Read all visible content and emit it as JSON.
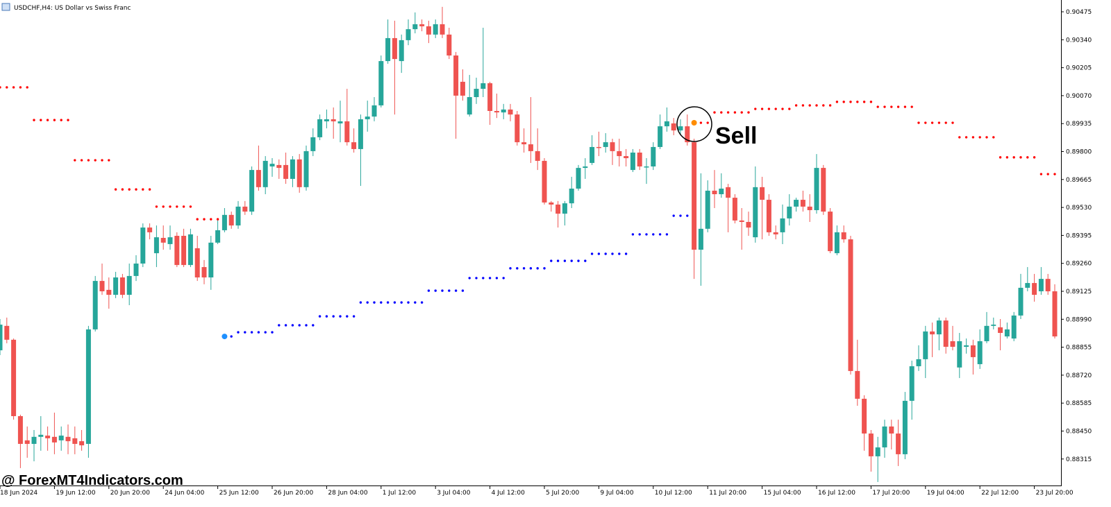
{
  "chart_data": {
    "type": "candlestick",
    "title": "USDCHF,H4:  US Dollar vs Swiss Franc",
    "watermark": "@ ForexMT4Indicators.com",
    "annotation": "Sell",
    "up_color": "#26a69a",
    "down_color": "#ef5350",
    "ylim": [
      0.88187,
      0.90532
    ],
    "yticks": [
      0.90475,
      {
        "value": 0.9034,
        "label": "0.90340"
      },
      0.90205,
      {
        "value": 0.9007,
        "label": "0.90070"
      },
      0.89935,
      {
        "value": 0.898,
        "label": "0.89800"
      },
      0.89665,
      {
        "value": 0.8953,
        "label": "0.89530"
      },
      0.89395,
      {
        "value": 0.8926,
        "label": "0.89260"
      },
      0.89125,
      {
        "value": 0.8899,
        "label": "0.88990"
      },
      0.88855,
      {
        "value": 0.8872,
        "label": "0.88720"
      },
      0.88585,
      {
        "value": 0.8845,
        "label": "0.88450"
      },
      0.88315
    ],
    "xticks": [
      {
        "value": 0,
        "label": "18 Jun 2024"
      },
      {
        "value": 8,
        "label": "19 Jun 12:00"
      },
      {
        "value": 16,
        "label": "20 Jun 20:00"
      },
      {
        "value": 24,
        "label": "24 Jun 04:00"
      },
      {
        "value": 32,
        "label": "25 Jun 12:00"
      },
      {
        "value": 40,
        "label": "26 Jun 20:00"
      },
      {
        "value": 48,
        "label": "28 Jun 04:00"
      },
      {
        "value": 56,
        "label": "1 Jul 12:00"
      },
      {
        "value": 64,
        "label": "3 Jul 04:00"
      },
      {
        "value": 72,
        "label": "4 Jul 12:00"
      },
      {
        "value": 80,
        "label": "5 Jul 20:00"
      },
      {
        "value": 88,
        "label": "9 Jul 04:00"
      },
      {
        "value": 96,
        "label": "10 Jul 12:00"
      },
      {
        "value": 104,
        "label": "11 Jul 20:00"
      },
      {
        "value": 112,
        "label": "15 Jul 04:00"
      },
      {
        "value": 120,
        "label": "16 Jul 12:00"
      },
      {
        "value": 128,
        "label": "17 Jul 20:00"
      },
      {
        "value": 136,
        "label": "19 Jul 04:00"
      },
      {
        "value": 144,
        "label": "22 Jul 12:00"
      },
      {
        "value": 152,
        "label": "23 Jul 20:00"
      }
    ],
    "open": [
      0.8884,
      0.88958,
      0.88891,
      0.88522,
      0.88405,
      0.88388,
      0.88422,
      0.88428,
      0.88422,
      0.88405,
      0.88422,
      0.88415,
      0.88401,
      0.88388,
      0.88941,
      0.89175,
      0.89132,
      0.89108,
      0.89192,
      0.89108,
      0.89199,
      0.89259,
      0.89433,
      0.89309,
      0.89383,
      0.89353,
      0.89393,
      0.89393,
      0.89252,
      0.89333,
      0.89242,
      0.89192,
      0.8936,
      0.8942,
      0.89494,
      0.89443,
      0.89534,
      0.8951,
      0.89711,
      0.89628,
      0.89728,
      0.89735,
      0.89735,
      0.89668,
      0.89762,
      0.89628,
      0.89802,
      0.89869,
      0.89946,
      0.89956,
      0.89936,
      0.89946,
      0.89845,
      0.89812,
      0.89956,
      0.89969,
      0.90023,
      0.90237,
      0.90348,
      0.90237,
      0.90338,
      0.90391,
      0.90415,
      0.90405,
      0.90365,
      0.90415,
      0.90365,
      0.90264,
      0.90137,
      0.89979,
      0.90063,
      0.90103,
      0.9013,
      0.89996,
      0.89989,
      0.90003,
      0.89979,
      0.89845,
      0.89835,
      0.89802,
      0.89755,
      0.89554,
      0.89544,
      0.895,
      0.8955,
      0.89621,
      0.89721,
      0.89745,
      0.89822,
      0.89822,
      0.89845,
      0.89802,
      0.89778,
      0.89711,
      0.89795,
      0.89728,
      0.89728,
      0.89822,
      0.89922,
      0.89936,
      0.89902,
      0.89922,
      0.89845,
      0.89326,
      0.89427,
      0.89611,
      0.89594,
      0.89628,
      0.89577,
      0.89467,
      0.8946,
      0.89386,
      0.89628,
      0.89567,
      0.8941,
      0.8941,
      0.89477,
      0.89534,
      0.89567,
      0.89534,
      0.89517,
      0.89721,
      0.8951,
      0.89309,
      0.8941,
      0.89376,
      0.8874,
      0.88606,
      0.88438,
      0.88328,
      0.88371,
      0.88472,
      0.88438,
      0.88338,
      0.88596,
      0.88763,
      0.88797,
      0.88931,
      0.88917,
      0.88984,
      0.88884,
      0.88757,
      0.88857,
      0.88864,
      0.88773,
      0.88884,
      0.88958,
      0.88951,
      0.88907,
      0.88897,
      0.89008,
      0.89142,
      0.89165,
      0.89125,
      0.89185,
      0.89125
    ],
    "high": [
      0.88991,
      0.88998,
      0.88897,
      0.88529,
      0.88472,
      0.88455,
      0.88522,
      0.88472,
      0.88539,
      0.88472,
      0.88482,
      0.88472,
      0.88455,
      0.88958,
      0.89199,
      0.89259,
      0.89192,
      0.89219,
      0.89209,
      0.89259,
      0.89299,
      0.89453,
      0.89453,
      0.89443,
      0.89443,
      0.89443,
      0.8941,
      0.89427,
      0.89427,
      0.89393,
      0.89276,
      0.89393,
      0.89477,
      0.89527,
      0.8951,
      0.89561,
      0.89561,
      0.89728,
      0.89829,
      0.89778,
      0.89768,
      0.89762,
      0.89795,
      0.89778,
      0.89788,
      0.89829,
      0.89912,
      0.89979,
      0.90003,
      0.90013,
      0.90046,
      0.90103,
      0.89912,
      0.89979,
      0.90046,
      0.90063,
      0.90264,
      0.90438,
      0.90432,
      0.90365,
      0.90438,
      0.90472,
      0.90438,
      0.90432,
      0.90438,
      0.90499,
      0.90398,
      0.90281,
      0.90197,
      0.9017,
      0.90157,
      0.90398,
      0.90137,
      0.9008,
      0.9003,
      0.9003,
      0.89996,
      0.89912,
      0.90063,
      0.89912,
      0.89768,
      0.89561,
      0.89561,
      0.89561,
      0.89678,
      0.89735,
      0.89768,
      0.89879,
      0.89896,
      0.89889,
      0.89862,
      0.89862,
      0.89812,
      0.89812,
      0.89812,
      0.89768,
      0.89845,
      0.89979,
      0.90013,
      0.89962,
      0.89956,
      0.89979,
      0.89862,
      0.89695,
      0.89661,
      0.89711,
      0.89695,
      0.89644,
      0.89594,
      0.89527,
      0.8951,
      0.89728,
      0.89678,
      0.89594,
      0.89443,
      0.89544,
      0.89594,
      0.89577,
      0.89611,
      0.89594,
      0.89788,
      0.89735,
      0.89527,
      0.89443,
      0.89443,
      0.89393,
      0.88891,
      0.88623,
      0.88455,
      0.88422,
      0.88505,
      0.88505,
      0.88505,
      0.88639,
      0.8879,
      0.88864,
      0.88958,
      0.88974,
      0.88998,
      0.88998,
      0.88958,
      0.88924,
      0.88897,
      0.88891,
      0.88941,
      0.89025,
      0.88998,
      0.88991,
      0.88974,
      0.89025,
      0.89209,
      0.89242,
      0.89209,
      0.89242,
      0.89209,
      0.89159
    ],
    "low": [
      0.88817,
      0.88874,
      0.88505,
      0.88271,
      0.88321,
      0.88304,
      0.88355,
      0.88355,
      0.88338,
      0.88355,
      0.88338,
      0.88338,
      0.88355,
      0.88321,
      0.88931,
      0.89108,
      0.89041,
      0.89092,
      0.89092,
      0.89058,
      0.89175,
      0.89242,
      0.89376,
      0.89242,
      0.89326,
      0.89326,
      0.89242,
      0.89242,
      0.89242,
      0.89175,
      0.89159,
      0.89132,
      0.89353,
      0.8941,
      0.89427,
      0.89427,
      0.89494,
      0.89494,
      0.89611,
      0.89594,
      0.89678,
      0.89668,
      0.89644,
      0.89628,
      0.89601,
      0.89611,
      0.89778,
      0.89855,
      0.89912,
      0.89862,
      0.89845,
      0.89829,
      0.89795,
      0.89634,
      0.89896,
      0.89946,
      0.90013,
      0.90224,
      0.89979,
      0.9018,
      0.90314,
      0.90371,
      0.90381,
      0.90324,
      0.90348,
      0.90348,
      0.90247,
      0.89862,
      0.90046,
      0.89969,
      0.9003,
      0.90063,
      0.89929,
      0.89962,
      0.89956,
      0.89946,
      0.89829,
      0.89795,
      0.89745,
      0.89711,
      0.89544,
      0.8951,
      0.89433,
      0.89443,
      0.89527,
      0.89611,
      0.89668,
      0.89735,
      0.89778,
      0.89795,
      0.89735,
      0.89728,
      0.89728,
      0.89701,
      0.89711,
      0.89644,
      0.89711,
      0.89812,
      0.89896,
      0.89879,
      0.89879,
      0.89829,
      0.89185,
      0.89152,
      0.8941,
      0.89527,
      0.89577,
      0.8941,
      0.89453,
      0.89326,
      0.89393,
      0.8936,
      0.89376,
      0.89393,
      0.89376,
      0.89353,
      0.89443,
      0.8951,
      0.8951,
      0.8946,
      0.895,
      0.89494,
      0.89309,
      0.89299,
      0.8936,
      0.88723,
      0.88572,
      0.88355,
      0.88254,
      0.88204,
      0.88321,
      0.88361,
      0.88281,
      0.88314,
      0.88505,
      0.8874,
      0.88706,
      0.88807,
      0.8884,
      0.88824,
      0.8884,
      0.88706,
      0.88824,
      0.88723,
      0.8875,
      0.88874,
      0.88941,
      0.8884,
      0.88897,
      0.88884,
      0.88991,
      0.89125,
      0.89075,
      0.89108,
      0.89108,
      0.88897
    ],
    "close": [
      0.88964,
      0.88891,
      0.88522,
      0.88388,
      0.88388,
      0.88422,
      0.88432,
      0.88415,
      0.88395,
      0.88428,
      0.88401,
      0.88388,
      0.88381,
      0.88941,
      0.89175,
      0.89125,
      0.89108,
      0.89192,
      0.89108,
      0.89199,
      0.89259,
      0.89433,
      0.8941,
      0.89386,
      0.8936,
      0.89386,
      0.89252,
      0.89252,
      0.894,
      0.89192,
      0.89192,
      0.8936,
      0.8942,
      0.89494,
      0.89443,
      0.89534,
      0.8951,
      0.89711,
      0.89628,
      0.89755,
      0.89741,
      0.89721,
      0.89668,
      0.89762,
      0.89628,
      0.89802,
      0.89869,
      0.89956,
      0.89956,
      0.89946,
      0.89946,
      0.89845,
      0.89812,
      0.89956,
      0.89969,
      0.90023,
      0.90237,
      0.90348,
      0.90247,
      0.90338,
      0.90391,
      0.90415,
      0.90405,
      0.90365,
      0.90415,
      0.90365,
      0.90264,
      0.9007,
      0.9007,
      0.90063,
      0.90103,
      0.9013,
      0.89996,
      0.89989,
      0.90003,
      0.89979,
      0.89845,
      0.89835,
      0.89802,
      0.89755,
      0.89554,
      0.89544,
      0.895,
      0.8955,
      0.89621,
      0.89721,
      0.89728,
      0.89822,
      0.89818,
      0.89845,
      0.89802,
      0.89778,
      0.89768,
      0.89795,
      0.89728,
      0.89728,
      0.89822,
      0.89922,
      0.89946,
      0.89902,
      0.89922,
      0.89845,
      0.89326,
      0.89427,
      0.89611,
      0.89594,
      0.89621,
      0.89577,
      0.89467,
      0.8946,
      0.89433,
      0.89628,
      0.89567,
      0.8941,
      0.894,
      0.89477,
      0.89534,
      0.89567,
      0.89534,
      0.89517,
      0.89721,
      0.8951,
      0.89319,
      0.8941,
      0.89376,
      0.8874,
      0.88606,
      0.88438,
      0.88328,
      0.88371,
      0.88472,
      0.88438,
      0.88338,
      0.88596,
      0.88763,
      0.88797,
      0.88931,
      0.88917,
      0.88984,
      0.88857,
      0.88857,
      0.88884,
      0.88864,
      0.88807,
      0.88884,
      0.88958,
      0.88964,
      0.88924,
      0.88941,
      0.89008,
      0.89142,
      0.89165,
      0.89108,
      0.89185,
      0.89125,
      0.88907
    ],
    "indicators": [
      {
        "color": "#ff0000",
        "values": [
          0.9011,
          0.9011,
          0.9011,
          0.9011,
          0.9011,
          0.89952,
          0.89952,
          0.89952,
          0.89952,
          0.89952,
          0.89952,
          0.89758,
          0.89758,
          0.89758,
          0.89758,
          0.89758,
          0.89758,
          0.89617,
          0.89617,
          0.89617,
          0.89617,
          0.89617,
          0.89617,
          0.89534,
          0.89534,
          0.89534,
          0.89534,
          0.89534,
          0.89534,
          0.89473,
          0.89473,
          0.89473,
          0.89473,
          null,
          null,
          null,
          null,
          null,
          null,
          null,
          null,
          null,
          null,
          null,
          null,
          null,
          null,
          null,
          null,
          null,
          null,
          null,
          null,
          null,
          null,
          null,
          null,
          null,
          null,
          null,
          null,
          null,
          null,
          null,
          null,
          null,
          null,
          null,
          null,
          null,
          null,
          null,
          null,
          null,
          null,
          null,
          null,
          null,
          null,
          null,
          null,
          null,
          null,
          null,
          null,
          null,
          null,
          null,
          null,
          null,
          null,
          null,
          null,
          null,
          null,
          null,
          null,
          null,
          null,
          null,
          null,
          null,
          null,
          0.89939,
          0.89939,
          0.89989,
          0.89989,
          0.89989,
          0.89989,
          0.89989,
          0.89989,
          0.90006,
          0.90006,
          0.90006,
          0.90006,
          0.90006,
          0.90006,
          0.90023,
          0.90023,
          0.90023,
          0.90023,
          0.90023,
          0.90023,
          0.9004,
          0.9004,
          0.9004,
          0.9004,
          0.9004,
          0.9004,
          0.90016,
          0.90016,
          0.90016,
          0.90016,
          0.90016,
          0.90016,
          0.89939,
          0.89939,
          0.89939,
          0.89939,
          0.89939,
          0.89939,
          0.89869,
          0.89869,
          0.89869,
          0.89869,
          0.89869,
          0.89869,
          0.89772,
          0.89772,
          0.89772,
          0.89772,
          0.89772,
          0.89772,
          0.89691,
          0.89691,
          0.89691
        ]
      },
      {
        "color": "#0000ff",
        "values": [
          null,
          null,
          null,
          null,
          null,
          null,
          null,
          null,
          null,
          null,
          null,
          null,
          null,
          null,
          null,
          null,
          null,
          null,
          null,
          null,
          null,
          null,
          null,
          null,
          null,
          null,
          null,
          null,
          null,
          null,
          null,
          null,
          null,
          0.88907,
          0.88907,
          0.88927,
          0.88927,
          0.88927,
          0.88927,
          0.88927,
          0.88927,
          0.88961,
          0.88961,
          0.88961,
          0.88961,
          0.88961,
          0.88961,
          0.89004,
          0.89004,
          0.89004,
          0.89004,
          0.89004,
          0.89004,
          0.89071,
          0.89071,
          0.89071,
          0.89071,
          0.89071,
          0.89071,
          0.89071,
          0.89071,
          0.89071,
          0.89071,
          0.89128,
          0.89128,
          0.89128,
          0.89128,
          0.89128,
          0.89128,
          0.89189,
          0.89189,
          0.89189,
          0.89189,
          0.89189,
          0.89189,
          0.89236,
          0.89236,
          0.89236,
          0.89236,
          0.89236,
          0.89236,
          0.89272,
          0.89272,
          0.89272,
          0.89272,
          0.89272,
          0.89272,
          0.89306,
          0.89306,
          0.89306,
          0.89306,
          0.89306,
          0.89306,
          0.894,
          0.894,
          0.894,
          0.894,
          0.894,
          0.894,
          0.8949,
          0.8949,
          0.8949,
          null,
          null,
          null,
          null,
          null,
          null,
          null,
          null,
          null,
          null,
          null,
          null,
          null,
          null,
          null,
          null,
          null,
          null,
          null,
          null,
          null,
          null,
          null,
          null,
          null,
          null,
          null,
          null,
          null,
          null,
          null,
          null,
          null,
          null,
          null,
          null,
          null,
          null,
          null,
          null,
          null,
          null,
          null,
          null,
          null,
          null,
          null,
          null,
          null,
          null,
          null,
          null,
          null,
          null
        ]
      }
    ],
    "signals": [
      {
        "x": 33,
        "value": 0.88907,
        "color": "#1e90ff"
      },
      {
        "x": 102,
        "value": 0.89939,
        "color": "#ff8c00"
      }
    ]
  }
}
